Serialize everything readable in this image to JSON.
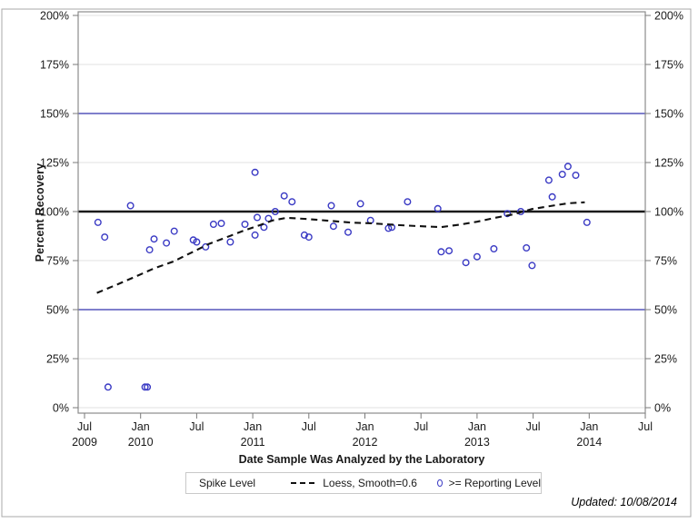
{
  "figure": {
    "y_axis_title": "Percent Recovery",
    "x_axis_title": "Date Sample Was Analyzed by the Laboratory",
    "updated_note": "Updated: 10/08/2014",
    "legend": {
      "spike_label": "Spike Level",
      "loess_label": "Loess, Smooth=0.6",
      "marker_label": ">= Reporting Level"
    }
  },
  "chart_data": {
    "type": "scatter",
    "title": "",
    "xlabel": "Date Sample Was Analyzed by the Laboratory",
    "ylabel": "Percent Recovery",
    "x_unit": "decimal_year",
    "xlim": [
      2009.44,
      2014.5
    ],
    "ylim": [
      0,
      200
    ],
    "grid": true,
    "legend_position": "bottom",
    "y_ticks": [
      0,
      25,
      50,
      75,
      100,
      125,
      150,
      175,
      200
    ],
    "y_tick_suffix": "%",
    "gridline_levels": [
      0,
      25,
      75,
      125,
      175,
      200
    ],
    "x_ticks": [
      {
        "year": 2009.5,
        "line1": "Jul",
        "line2": "2009"
      },
      {
        "year": 2010.0,
        "line1": "Jan",
        "line2": "2010"
      },
      {
        "year": 2010.5,
        "line1": "Jul",
        "line2": ""
      },
      {
        "year": 2011.0,
        "line1": "Jan",
        "line2": "2011"
      },
      {
        "year": 2011.5,
        "line1": "Jul",
        "line2": ""
      },
      {
        "year": 2012.0,
        "line1": "Jan",
        "line2": "2012"
      },
      {
        "year": 2012.5,
        "line1": "Jul",
        "line2": ""
      },
      {
        "year": 2013.0,
        "line1": "Jan",
        "line2": "2013"
      },
      {
        "year": 2013.5,
        "line1": "Jul",
        "line2": ""
      },
      {
        "year": 2014.0,
        "line1": "Jan",
        "line2": "2014"
      },
      {
        "year": 2014.5,
        "line1": "Jul",
        "line2": ""
      }
    ],
    "ref_lines": [
      {
        "y": 50,
        "color": "#3333ad",
        "width": 1.2,
        "name": "spike-level-low"
      },
      {
        "y": 100,
        "color": "#1a1a1a",
        "width": 2.6,
        "name": "spike-level-100"
      },
      {
        "y": 150,
        "color": "#3333ad",
        "width": 1.2,
        "name": "spike-level-high"
      }
    ],
    "colors": {
      "marker": "#3a3ac4",
      "loess": "#111111",
      "gridline": "#e0e0e0",
      "frame": "#8c8c8c",
      "tick": "#7a7a7a",
      "outer_border": "#a9a9a9"
    },
    "series": [
      {
        "name": ">= Reporting Level",
        "kind": "scatter",
        "points": [
          [
            2009.62,
            94.5
          ],
          [
            2009.68,
            87
          ],
          [
            2009.71,
            10.5
          ],
          [
            2009.91,
            103
          ],
          [
            2010.04,
            10.5
          ],
          [
            2010.06,
            10.5
          ],
          [
            2010.08,
            80.5
          ],
          [
            2010.12,
            86
          ],
          [
            2010.23,
            84
          ],
          [
            2010.3,
            90
          ],
          [
            2010.47,
            85.5
          ],
          [
            2010.5,
            84.5
          ],
          [
            2010.58,
            82
          ],
          [
            2010.65,
            93.5
          ],
          [
            2010.72,
            94
          ],
          [
            2010.8,
            84.5
          ],
          [
            2010.93,
            93.5
          ],
          [
            2011.02,
            120
          ],
          [
            2011.02,
            88
          ],
          [
            2011.04,
            97
          ],
          [
            2011.1,
            92
          ],
          [
            2011.14,
            96.5
          ],
          [
            2011.2,
            100
          ],
          [
            2011.28,
            108
          ],
          [
            2011.35,
            105
          ],
          [
            2011.46,
            88
          ],
          [
            2011.5,
            87
          ],
          [
            2011.7,
            103
          ],
          [
            2011.72,
            92.5
          ],
          [
            2011.85,
            89.5
          ],
          [
            2011.96,
            104
          ],
          [
            2012.05,
            95.5
          ],
          [
            2012.21,
            91.5
          ],
          [
            2012.24,
            92
          ],
          [
            2012.38,
            105
          ],
          [
            2012.65,
            101.5
          ],
          [
            2012.68,
            79.5
          ],
          [
            2012.75,
            80
          ],
          [
            2012.9,
            74
          ],
          [
            2013.0,
            77
          ],
          [
            2013.15,
            81
          ],
          [
            2013.27,
            99
          ],
          [
            2013.39,
            100
          ],
          [
            2013.44,
            81.5
          ],
          [
            2013.49,
            72.5
          ],
          [
            2013.64,
            116
          ],
          [
            2013.67,
            107.5
          ],
          [
            2013.76,
            119
          ],
          [
            2013.81,
            123
          ],
          [
            2013.88,
            118.5
          ],
          [
            2013.98,
            94.5
          ]
        ]
      },
      {
        "name": "Loess, Smooth=0.6",
        "kind": "line",
        "dash": [
          7,
          5
        ],
        "points": [
          [
            2009.61,
            58.5
          ],
          [
            2009.8,
            63
          ],
          [
            2009.96,
            67
          ],
          [
            2010.12,
            71
          ],
          [
            2010.29,
            74.5
          ],
          [
            2010.45,
            79
          ],
          [
            2010.61,
            83.5
          ],
          [
            2010.77,
            87
          ],
          [
            2010.93,
            90.5
          ],
          [
            2011.06,
            93
          ],
          [
            2011.18,
            95.5
          ],
          [
            2011.3,
            96.8
          ],
          [
            2011.46,
            96.3
          ],
          [
            2011.66,
            95.4
          ],
          [
            2011.87,
            94.4
          ],
          [
            2012.07,
            94
          ],
          [
            2012.27,
            93.2
          ],
          [
            2012.47,
            92.6
          ],
          [
            2012.68,
            92.1
          ],
          [
            2012.84,
            93.3
          ],
          [
            2013.0,
            94.8
          ],
          [
            2013.16,
            96.8
          ],
          [
            2013.32,
            98.5
          ],
          [
            2013.49,
            101.3
          ],
          [
            2013.65,
            102.8
          ],
          [
            2013.81,
            104.2
          ],
          [
            2013.96,
            104.7
          ]
        ]
      }
    ]
  }
}
